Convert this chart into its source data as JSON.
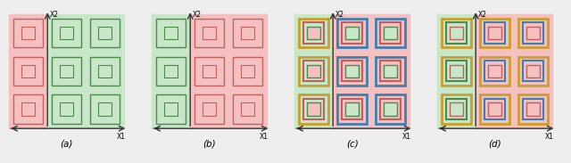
{
  "panels": [
    "(a)",
    "(b)",
    "(c)",
    "(d)"
  ],
  "bg_red": "#f5c0c0",
  "bg_green": "#c8e6c8",
  "bg_blue": "#b8d8f0",
  "bg_yellow": "#f5e6a0",
  "border_red": "#c06060",
  "border_green": "#508850",
  "border_blue": "#4080b0",
  "border_yellow": "#c8a030",
  "axis_color": "#333333",
  "fig_bg": "#eeeeee",
  "panel_bg": "#eeeeee",
  "sq_face_red": "#f5c0c0",
  "sq_face_green": "#c8e6c8",
  "sq_face_white": "#ffffff"
}
